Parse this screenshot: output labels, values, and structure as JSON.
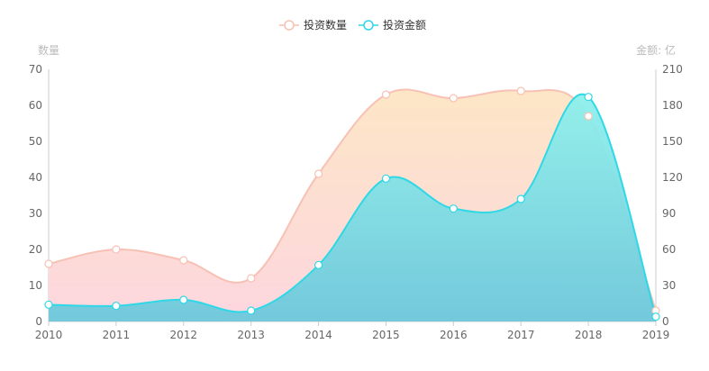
{
  "chart_data": {
    "type": "area",
    "title": "",
    "legend": {
      "position": "top-center",
      "entries": [
        "投资数量",
        "投资金额"
      ]
    },
    "x": [
      "2010",
      "2011",
      "2012",
      "2013",
      "2014",
      "2015",
      "2016",
      "2017",
      "2018",
      "2019"
    ],
    "left_axis": {
      "label": "数量",
      "ylim": [
        0,
        70
      ],
      "ticks": [
        0,
        10,
        20,
        30,
        40,
        50,
        60,
        70
      ]
    },
    "right_axis": {
      "label": "金额: 亿",
      "ylim": [
        0,
        210
      ],
      "ticks": [
        0,
        30,
        60,
        90,
        120,
        150,
        180,
        210
      ]
    },
    "grid": false,
    "smooth": true,
    "series": [
      {
        "name": "投资数量",
        "axis": "left",
        "values": [
          16,
          20,
          17,
          12,
          41,
          63,
          62,
          64,
          57,
          3
        ],
        "color": "#f7c1b5",
        "fill_top": "#fde6c6",
        "fill_bottom": "#fdd6df"
      },
      {
        "name": "投资金额",
        "axis": "right",
        "values": [
          14,
          13,
          18,
          9,
          47,
          119,
          94,
          102,
          187,
          4
        ],
        "color": "#2ed8e6",
        "fill_top": "#8ef0ec",
        "fill_bottom": "#6cc8db"
      }
    ]
  }
}
